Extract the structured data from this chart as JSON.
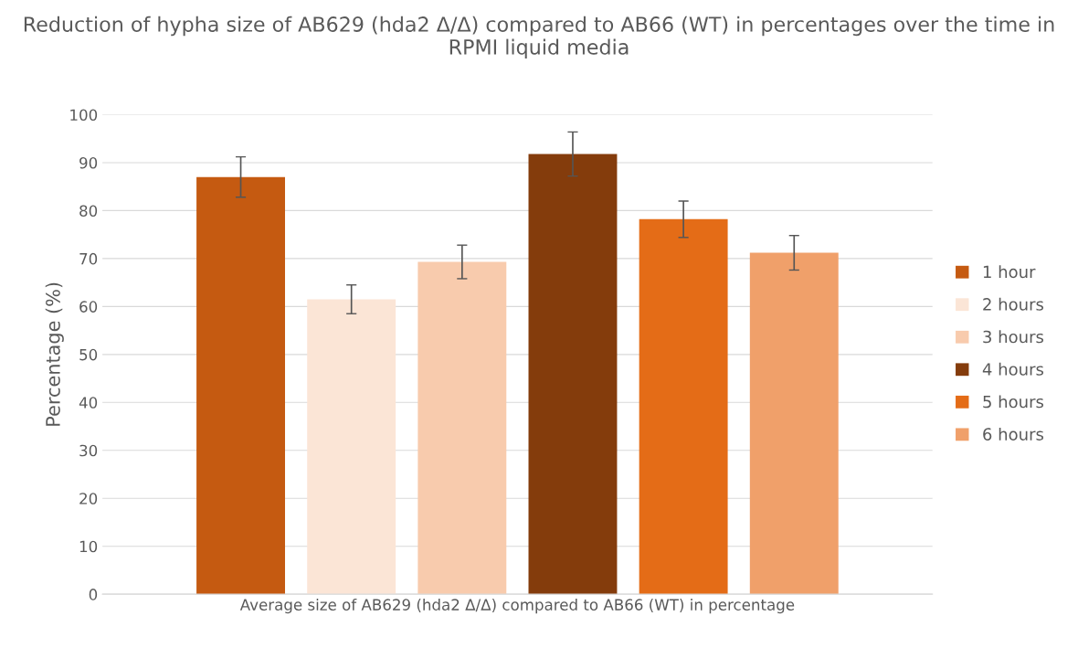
{
  "chart_data": {
    "type": "bar",
    "title": "Reduction of hypha size of AB629 (hda2 Δ/Δ) compared to AB66 (WT) in percentages over the time in RPMI liquid media",
    "ylabel": "Percentage (%)",
    "categories": [
      "Average size of AB629 (hda2 Δ/Δ) compared to AB66 (WT) in percentage"
    ],
    "series": [
      {
        "name": "1 hour",
        "color": "#c55a11",
        "values": [
          87.0
        ],
        "errors": [
          4.2
        ]
      },
      {
        "name": "2 hours",
        "color": "#fbe5d6",
        "values": [
          61.5
        ],
        "errors": [
          3.0
        ]
      },
      {
        "name": "3 hours",
        "color": "#f8cbad",
        "values": [
          69.3
        ],
        "errors": [
          3.5
        ]
      },
      {
        "name": "4 hours",
        "color": "#843c0c",
        "values": [
          91.8
        ],
        "errors": [
          4.6
        ]
      },
      {
        "name": "5 hours",
        "color": "#e46c17",
        "values": [
          78.2
        ],
        "errors": [
          3.8
        ]
      },
      {
        "name": "6 hours",
        "color": "#f0a06a",
        "values": [
          71.2
        ],
        "errors": [
          3.6
        ]
      }
    ],
    "ylim": [
      0,
      100
    ],
    "yticks": [
      0,
      10,
      20,
      30,
      40,
      50,
      60,
      70,
      80,
      90,
      100
    ],
    "grid": "y",
    "legend": "right"
  }
}
